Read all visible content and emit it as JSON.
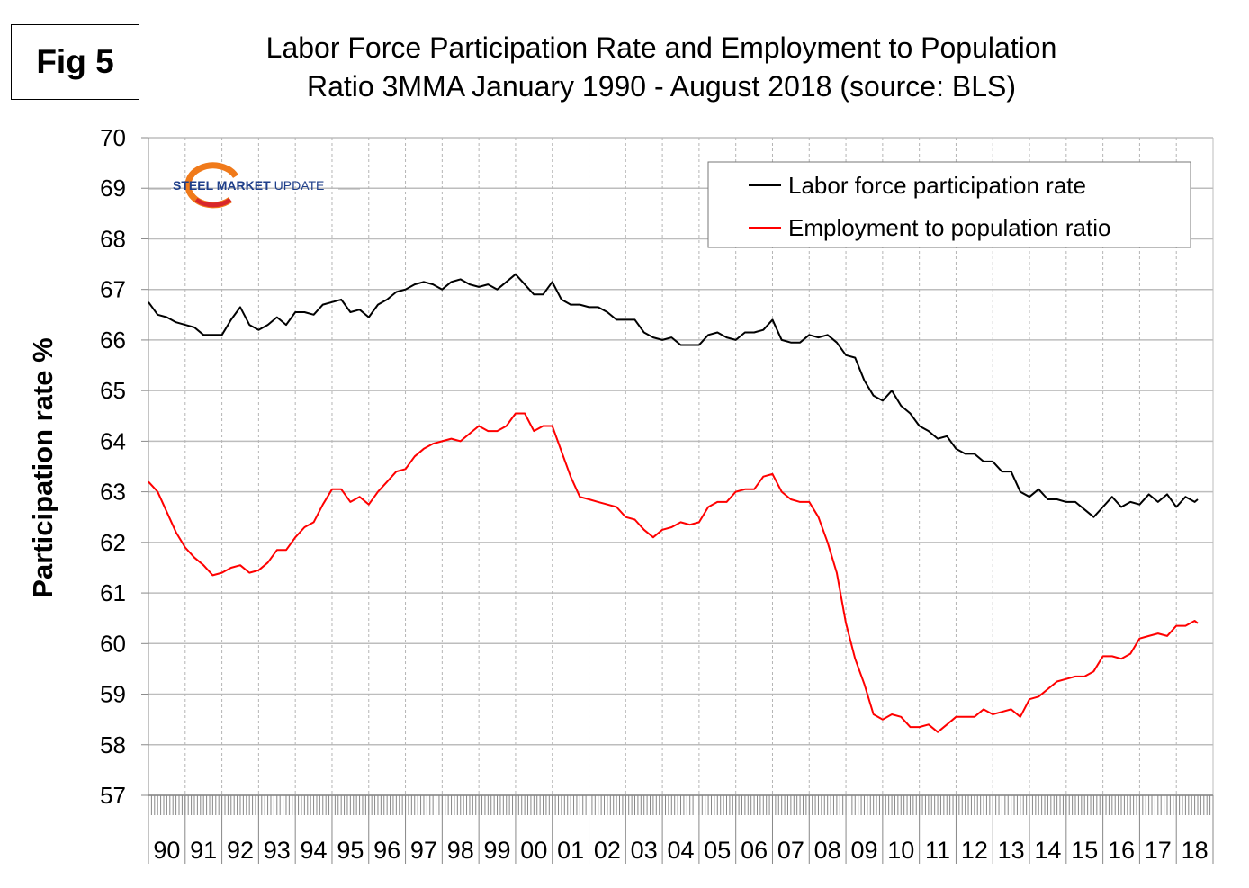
{
  "figure_label": "Fig 5",
  "logo": {
    "text": "STEEL MARKET UPDATE",
    "colors": {
      "navy": "#1f3f8a",
      "orange": "#f07a1a",
      "red": "#d8262a"
    }
  },
  "chart_data": {
    "type": "line",
    "title_lines": [
      "Labor Force Participation Rate and Employment to Population",
      "Ratio 3MMA January 1990 - August 2018 (source: BLS)"
    ],
    "xlabel": "",
    "ylabel": "Participation rate %",
    "ylim": [
      57,
      70
    ],
    "yticks": [
      57,
      58,
      59,
      60,
      61,
      62,
      63,
      64,
      65,
      66,
      67,
      68,
      69,
      70
    ],
    "xlim": [
      "1990-01",
      "2018-12"
    ],
    "x_tick_labels": [
      "90",
      "91",
      "92",
      "93",
      "94",
      "95",
      "96",
      "97",
      "98",
      "99",
      "00",
      "01",
      "02",
      "03",
      "04",
      "05",
      "06",
      "07",
      "08",
      "09",
      "10",
      "11",
      "12",
      "13",
      "14",
      "15",
      "16",
      "17",
      "18"
    ],
    "grid": true,
    "legend_position": "top-right",
    "x": [
      "1990-01",
      "1990-04",
      "1990-07",
      "1990-10",
      "1991-01",
      "1991-04",
      "1991-07",
      "1991-10",
      "1992-01",
      "1992-04",
      "1992-07",
      "1992-10",
      "1993-01",
      "1993-04",
      "1993-07",
      "1993-10",
      "1994-01",
      "1994-04",
      "1994-07",
      "1994-10",
      "1995-01",
      "1995-04",
      "1995-07",
      "1995-10",
      "1996-01",
      "1996-04",
      "1996-07",
      "1996-10",
      "1997-01",
      "1997-04",
      "1997-07",
      "1997-10",
      "1998-01",
      "1998-04",
      "1998-07",
      "1998-10",
      "1999-01",
      "1999-04",
      "1999-07",
      "1999-10",
      "2000-01",
      "2000-04",
      "2000-07",
      "2000-10",
      "2001-01",
      "2001-04",
      "2001-07",
      "2001-10",
      "2002-01",
      "2002-04",
      "2002-07",
      "2002-10",
      "2003-01",
      "2003-04",
      "2003-07",
      "2003-10",
      "2004-01",
      "2004-04",
      "2004-07",
      "2004-10",
      "2005-01",
      "2005-04",
      "2005-07",
      "2005-10",
      "2006-01",
      "2006-04",
      "2006-07",
      "2006-10",
      "2007-01",
      "2007-04",
      "2007-07",
      "2007-10",
      "2008-01",
      "2008-04",
      "2008-07",
      "2008-10",
      "2009-01",
      "2009-04",
      "2009-07",
      "2009-10",
      "2010-01",
      "2010-04",
      "2010-07",
      "2010-10",
      "2011-01",
      "2011-04",
      "2011-07",
      "2011-10",
      "2012-01",
      "2012-04",
      "2012-07",
      "2012-10",
      "2013-01",
      "2013-04",
      "2013-07",
      "2013-10",
      "2014-01",
      "2014-04",
      "2014-07",
      "2014-10",
      "2015-01",
      "2015-04",
      "2015-07",
      "2015-10",
      "2016-01",
      "2016-04",
      "2016-07",
      "2016-10",
      "2017-01",
      "2017-04",
      "2017-07",
      "2017-10",
      "2018-01",
      "2018-04",
      "2018-07",
      "2018-08"
    ],
    "series": [
      {
        "name": "Labor force participation rate",
        "color": "#000000",
        "values": [
          66.75,
          66.5,
          66.45,
          66.35,
          66.3,
          66.25,
          66.1,
          66.1,
          66.1,
          66.4,
          66.65,
          66.3,
          66.2,
          66.3,
          66.45,
          66.3,
          66.55,
          66.55,
          66.5,
          66.7,
          66.75,
          66.8,
          66.55,
          66.6,
          66.45,
          66.7,
          66.8,
          66.95,
          67.0,
          67.1,
          67.15,
          67.1,
          67.0,
          67.15,
          67.2,
          67.1,
          67.05,
          67.1,
          67.0,
          67.15,
          67.3,
          67.1,
          66.9,
          66.9,
          67.15,
          66.8,
          66.7,
          66.7,
          66.65,
          66.65,
          66.55,
          66.4,
          66.4,
          66.4,
          66.15,
          66.05,
          66.0,
          66.05,
          65.9,
          65.9,
          65.9,
          66.1,
          66.15,
          66.05,
          66.0,
          66.15,
          66.15,
          66.2,
          66.4,
          66.0,
          65.95,
          65.95,
          66.1,
          66.05,
          66.1,
          65.95,
          65.7,
          65.65,
          65.2,
          64.9,
          64.8,
          65.0,
          64.7,
          64.55,
          64.3,
          64.2,
          64.05,
          64.1,
          63.85,
          63.75,
          63.75,
          63.6,
          63.6,
          63.4,
          63.4,
          63.0,
          62.9,
          63.05,
          62.85,
          62.85,
          62.8,
          62.8,
          62.65,
          62.5,
          62.7,
          62.9,
          62.7,
          62.8,
          62.75,
          62.95,
          62.8,
          62.95,
          62.7,
          62.9,
          62.8,
          62.85
        ]
      },
      {
        "name": "Employment to population ratio",
        "color": "#ff0000",
        "values": [
          63.2,
          63.0,
          62.6,
          62.2,
          61.9,
          61.7,
          61.55,
          61.35,
          61.4,
          61.5,
          61.55,
          61.4,
          61.45,
          61.6,
          61.85,
          61.85,
          62.1,
          62.3,
          62.4,
          62.75,
          63.05,
          63.05,
          62.8,
          62.9,
          62.75,
          63.0,
          63.2,
          63.4,
          63.45,
          63.7,
          63.85,
          63.95,
          64.0,
          64.05,
          64.0,
          64.15,
          64.3,
          64.2,
          64.2,
          64.3,
          64.55,
          64.55,
          64.2,
          64.3,
          64.3,
          63.8,
          63.3,
          62.9,
          62.85,
          62.8,
          62.75,
          62.7,
          62.5,
          62.45,
          62.25,
          62.1,
          62.25,
          62.3,
          62.4,
          62.35,
          62.4,
          62.7,
          62.8,
          62.8,
          63.0,
          63.05,
          63.05,
          63.3,
          63.35,
          63.0,
          62.85,
          62.8,
          62.8,
          62.5,
          62.0,
          61.4,
          60.4,
          59.7,
          59.2,
          58.6,
          58.5,
          58.6,
          58.55,
          58.35,
          58.35,
          58.4,
          58.25,
          58.4,
          58.55,
          58.55,
          58.55,
          58.7,
          58.6,
          58.65,
          58.7,
          58.55,
          58.9,
          58.95,
          59.1,
          59.25,
          59.3,
          59.35,
          59.35,
          59.45,
          59.75,
          59.75,
          59.7,
          59.8,
          60.1,
          60.15,
          60.2,
          60.15,
          60.35,
          60.35,
          60.45,
          60.4
        ]
      }
    ]
  }
}
